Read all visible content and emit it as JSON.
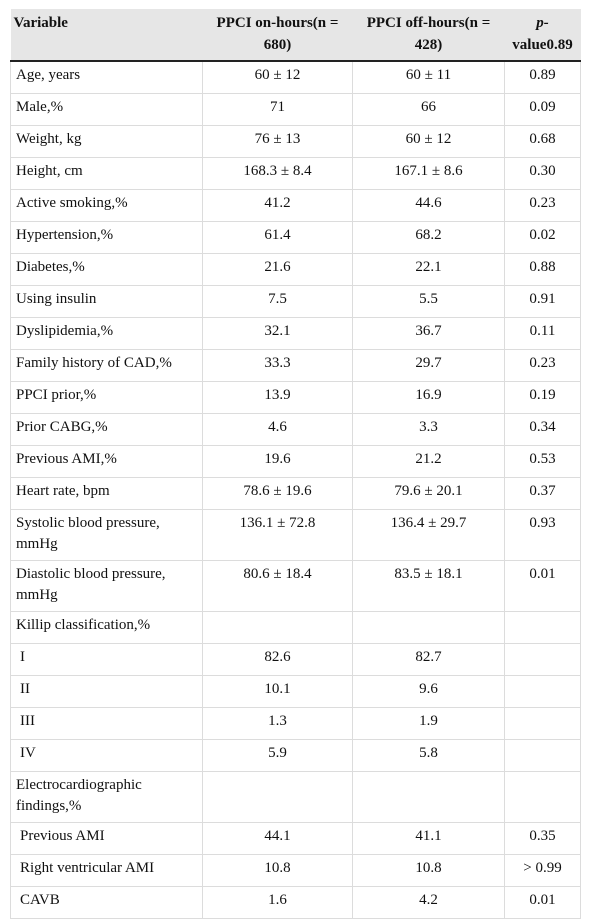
{
  "table": {
    "headers": {
      "variable": "Variable",
      "on_hours": "PPCI on-hours(n = 680)",
      "off_hours": "PPCI off-hours(n = 428)",
      "p_italic": "p-",
      "p_rest": "value0.89"
    },
    "rows": [
      {
        "label": "Age, years",
        "on": "60 ± 12",
        "off": "60 ± 11",
        "p": "0.89"
      },
      {
        "label": "Male,%",
        "on": "71",
        "off": "66",
        "p": "0.09"
      },
      {
        "label": "Weight, kg",
        "on": "76 ± 13",
        "off": "60 ± 12",
        "p": "0.68"
      },
      {
        "label": "Height, cm",
        "on": "168.3 ± 8.4",
        "off": "167.1 ± 8.6",
        "p": "0.30"
      },
      {
        "label": "Active smoking,%",
        "on": "41.2",
        "off": "44.6",
        "p": "0.23"
      },
      {
        "label": "Hypertension,%",
        "on": "61.4",
        "off": "68.2",
        "p": "0.02"
      },
      {
        "label": "Diabetes,%",
        "on": "21.6",
        "off": "22.1",
        "p": "0.88"
      },
      {
        "label": "Using insulin",
        "on": "7.5",
        "off": "5.5",
        "p": "0.91"
      },
      {
        "label": "Dyslipidemia,%",
        "on": "32.1",
        "off": "36.7",
        "p": "0.11"
      },
      {
        "label": "Family history of CAD,%",
        "on": "33.3",
        "off": "29.7",
        "p": "0.23"
      },
      {
        "label": "PPCI prior,%",
        "on": "13.9",
        "off": "16.9",
        "p": "0.19"
      },
      {
        "label": "Prior CABG,%",
        "on": "4.6",
        "off": "3.3",
        "p": "0.34"
      },
      {
        "label": "Previous AMI,%",
        "on": "19.6",
        "off": "21.2",
        "p": "0.53"
      },
      {
        "label": "Heart rate, bpm",
        "on": "78.6 ± 19.6",
        "off": "79.6 ± 20.1",
        "p": "0.37"
      },
      {
        "label": "Systolic blood pressure, mmHg",
        "on": "136.1 ± 72.8",
        "off": "136.4 ± 29.7",
        "p": "0.93"
      },
      {
        "label": "Diastolic blood pressure, mmHg",
        "on": "80.6 ± 18.4",
        "off": "83.5 ± 18.1",
        "p": "0.01"
      },
      {
        "label": "Killip classification,%",
        "on": "",
        "off": "",
        "p": ""
      },
      {
        "label": "I",
        "on": "82.6",
        "off": "82.7",
        "p": ""
      },
      {
        "label": "II",
        "on": "10.1",
        "off": "9.6",
        "p": ""
      },
      {
        "label": "III",
        "on": "1.3",
        "off": "1.9",
        "p": ""
      },
      {
        "label": "IV",
        "on": "5.9",
        "off": "5.8",
        "p": ""
      },
      {
        "label": "Electrocardiographic findings,%",
        "on": "",
        "off": "",
        "p": ""
      },
      {
        "label": "Previous AMI",
        "on": "44.1",
        "off": "41.1",
        "p": "0.35"
      },
      {
        "label": "Right ventricular AMI",
        "on": "10.8",
        "off": "10.8",
        "p": "> 0.99"
      },
      {
        "label": "CAVB",
        "on": "1.6",
        "off": "4.2",
        "p": "0.01"
      }
    ]
  }
}
